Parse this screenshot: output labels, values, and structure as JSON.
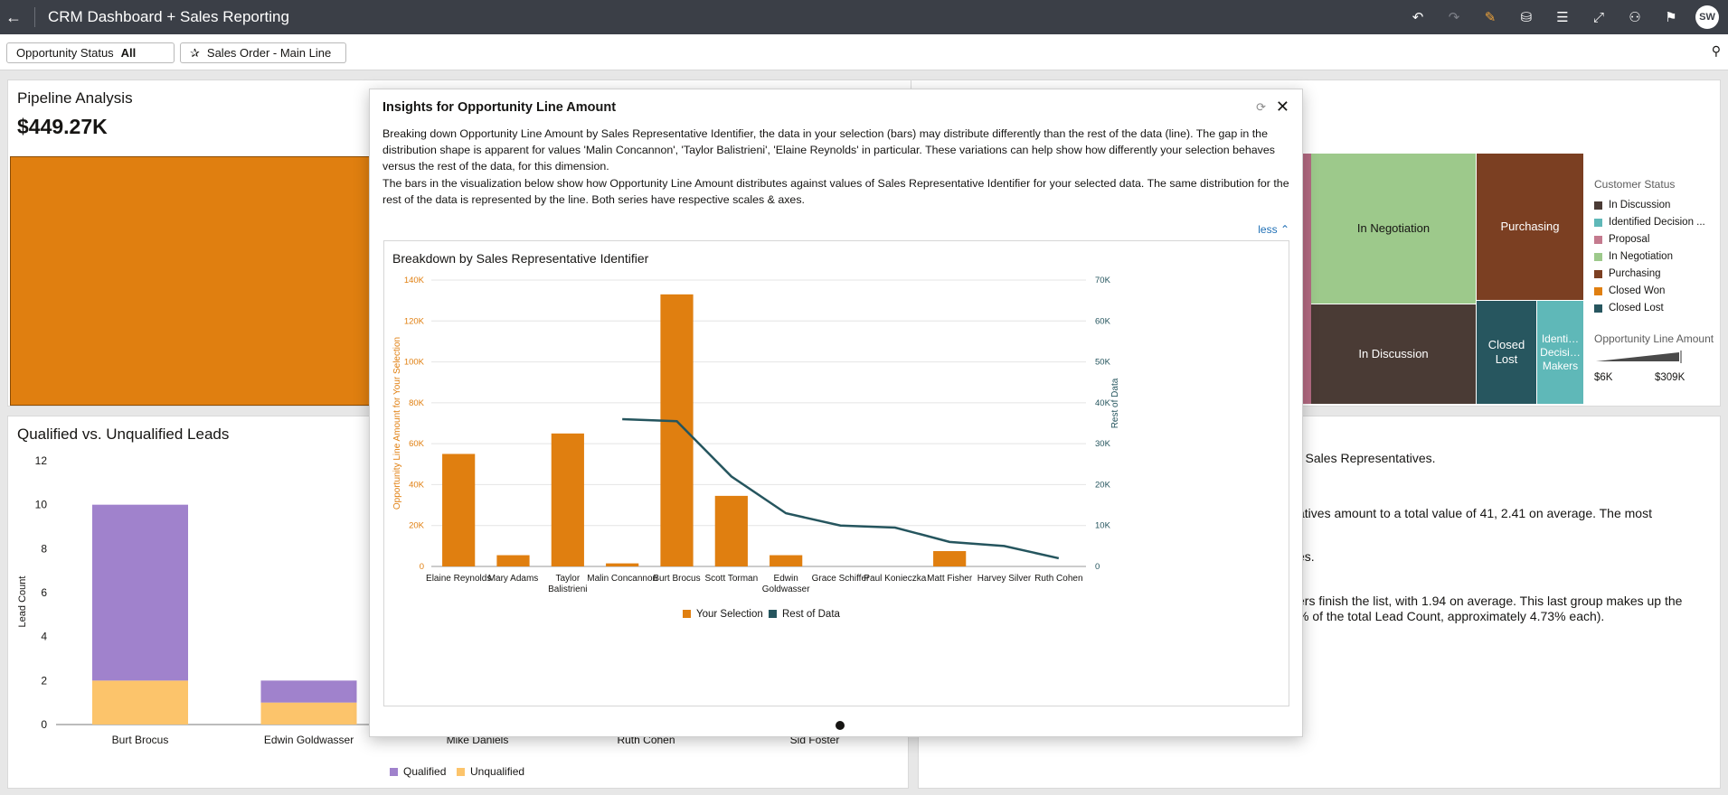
{
  "app": {
    "title": "CRM Dashboard + Sales Reporting",
    "avatar_initials": "SW"
  },
  "toolbar": [
    "undo-icon",
    "redo-icon",
    "edit-icon",
    "data-icon",
    "comment-icon",
    "present-icon",
    "share-icon",
    "bookmark-icon"
  ],
  "filters": {
    "status_label": "Opportunity Status",
    "status_value": "All",
    "pinned_label": "Sales Order - Main Line"
  },
  "pipeline": {
    "title": "Pipeline Analysis",
    "total": "$449.27K"
  },
  "treemap": {
    "tiles": [
      {
        "label": "In Negotiation",
        "color": "#9dc98b"
      },
      {
        "label": "Purchasing",
        "color": "#7b3f22"
      },
      {
        "label": "In Discussion",
        "color": "#4a3b35"
      },
      {
        "label": "Closed Lost",
        "color": "#27565f"
      },
      {
        "label": "Identi… Decisi… Makers",
        "color": "#5fb8b8"
      },
      {
        "label": "",
        "color": "#b36a82"
      }
    ],
    "legend_title": "Customer Status",
    "legend": [
      {
        "label": "In Discussion",
        "color": "#4a3b35"
      },
      {
        "label": "Identified Decision ...",
        "color": "#5fb8b8"
      },
      {
        "label": "Proposal",
        "color": "#c47a8e"
      },
      {
        "label": "In Negotiation",
        "color": "#9dc98b"
      },
      {
        "label": "Purchasing",
        "color": "#7b3f22"
      },
      {
        "label": "Closed Won",
        "color": "#e07f10"
      },
      {
        "label": "Closed Lost",
        "color": "#27565f"
      }
    ],
    "amount_title": "Opportunity Line Amount",
    "amount_min": "$6K",
    "amount_max": "$309K"
  },
  "leads": {
    "title": "Qualified vs. Unqualified Leads",
    "ylabel": "Lead Count",
    "yticks": [
      "0",
      "2",
      "4",
      "6",
      "8",
      "10",
      "12"
    ],
    "legend": [
      {
        "label": "Qualified",
        "color": "#a082cc"
      },
      {
        "label": "Unqualified",
        "color": "#fcc46b"
      }
    ]
  },
  "narrative": {
    "lines": [
      "r Sales Representatives.",
      "atives amount to a total value of 41, 2.41 on average. The most",
      "es.",
      ".",
      "ers finish the list, with 1.94 on average. This last group makes up the",
      "% of the total Lead Count, approximately 4.73% each)."
    ]
  },
  "modal": {
    "title": "Insights for Opportunity Line Amount",
    "paragraphs": [
      "Breaking down Opportunity Line Amount by Sales Representative Identifier, the data in your selection (bars) may distribute differently than the rest of the data (line). The gap in the distribution shape is apparent for values 'Malin Concannon', 'Taylor Balistrieni', 'Elaine Reynolds' in particular. These variations can help show how differently your selection behaves versus the rest of the data, for this dimension.",
      "The bars in the visualization below show how Opportunity Line Amount distributes against values of Sales Representative Identifier for your selected data. The same distribution for the rest of the data is represented by the line. Both series have respective scales & axes."
    ],
    "less_label": "less ⌃",
    "chart_title": "Breakdown by Sales Representative Identifier"
  },
  "chart_data": [
    {
      "type": "bar",
      "title": "Breakdown by Sales Representative Identifier",
      "categories": [
        "Elaine Reynolds",
        "Mary Adams",
        "Taylor Balistrieni",
        "Malin Concannon",
        "Burt Brocus",
        "Scott Torman",
        "Edwin Goldwasser",
        "Grace Schiffer",
        "Paul Konieczka",
        "Matt Fisher",
        "Harvey Silver",
        "Ruth Cohen"
      ],
      "series": [
        {
          "name": "Your Selection",
          "type": "bar",
          "axis": "left",
          "color": "#e07f10",
          "values": [
            55000,
            5500,
            65000,
            1500,
            133000,
            34500,
            5500,
            0,
            0,
            7500,
            0,
            0
          ]
        },
        {
          "name": "Rest of Data",
          "type": "line",
          "axis": "right",
          "color": "#25555e",
          "values": [
            null,
            null,
            null,
            36000,
            35500,
            22000,
            13000,
            10000,
            9500,
            6000,
            5000,
            2000
          ]
        }
      ],
      "ylabel": "Opportunity Line Amount for Your Selection",
      "y2label": "Rest of Data",
      "ylim": [
        0,
        140000
      ],
      "y2lim": [
        0,
        70000
      ],
      "yticks": [
        "0",
        "20K",
        "40K",
        "60K",
        "80K",
        "100K",
        "120K",
        "140K"
      ],
      "y2ticks": [
        "0",
        "10K",
        "20K",
        "30K",
        "40K",
        "50K",
        "60K",
        "70K"
      ],
      "grid": true,
      "legend": "bottom"
    },
    {
      "type": "bar",
      "stacked": true,
      "title": "Qualified vs. Unqualified Leads",
      "categories": [
        "Burt Brocus",
        "Edwin Goldwasser",
        "Mike Daniels",
        "Ruth Cohen",
        "Sid Foster"
      ],
      "series": [
        {
          "name": "Unqualified",
          "color": "#fcc46b",
          "values": [
            2,
            1,
            null,
            null,
            null
          ]
        },
        {
          "name": "Qualified",
          "color": "#a082cc",
          "values": [
            8,
            1,
            null,
            null,
            null
          ]
        }
      ],
      "ylabel": "Lead Count",
      "ylim": [
        0,
        12
      ],
      "legend": "bottom"
    }
  ]
}
